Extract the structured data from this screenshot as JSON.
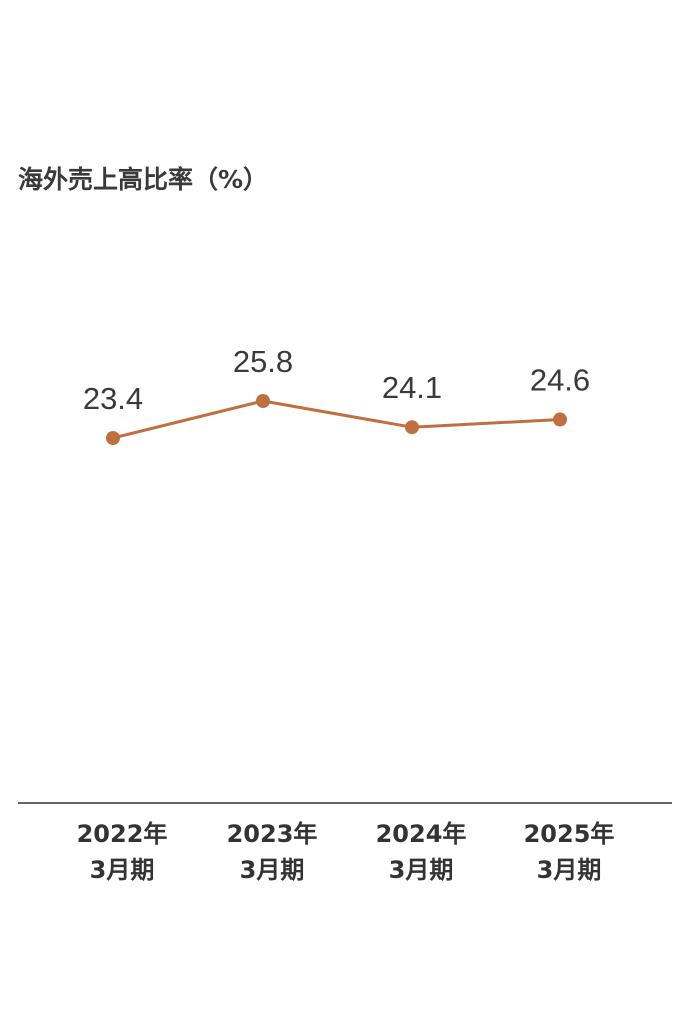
{
  "chart_data": {
    "type": "line",
    "title": "海外売上高比率（%）",
    "categories": [
      [
        "2022年",
        "3月期"
      ],
      [
        "2023年",
        "3月期"
      ],
      [
        "2024年",
        "3月期"
      ],
      [
        "2025年",
        "3月期"
      ]
    ],
    "series": [
      {
        "values": [
          23.4,
          25.8,
          24.1,
          24.6
        ],
        "color": "#c0703f"
      }
    ],
    "value_labels": [
      "23.4",
      "25.8",
      "24.1",
      "24.6"
    ],
    "grid": false,
    "axis_color": "#333333"
  }
}
